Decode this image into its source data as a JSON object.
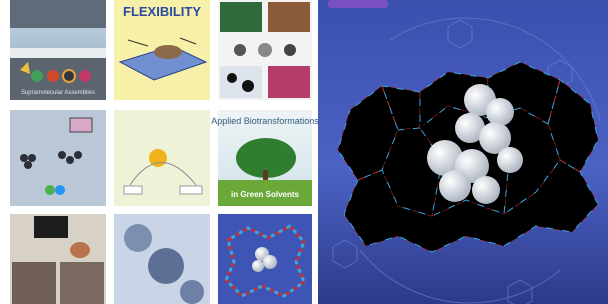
{
  "cover_texts": {
    "top_left_caption": "Supramolecular Assemblies",
    "flexibility": "FLEXIBILITY",
    "biotransformations_title": "Applied Biotransformations",
    "biotransformations_subtitle": "in Green Solvents"
  }
}
